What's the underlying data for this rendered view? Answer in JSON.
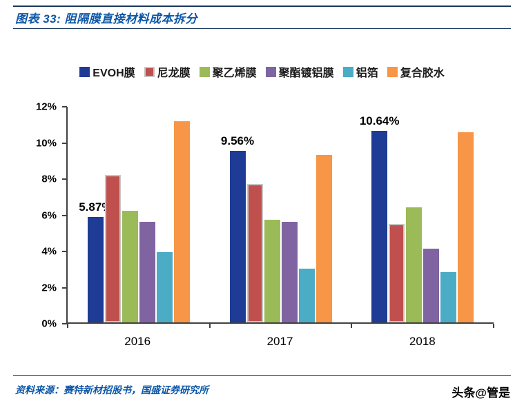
{
  "header": {
    "title": "图表 33: 阻隔膜直接材料成本拆分"
  },
  "chart_data": {
    "type": "bar",
    "title": "阻隔膜直接材料成本拆分",
    "categories": [
      "2016",
      "2017",
      "2018"
    ],
    "series": [
      {
        "name": "EVOH膜",
        "color": "#1E3C95",
        "values": [
          5.87,
          9.56,
          10.64
        ]
      },
      {
        "name": "尼龙膜",
        "color": "#C0504D",
        "border": "#C6C6C6",
        "values": [
          8.2,
          7.7,
          5.5
        ]
      },
      {
        "name": "聚乙烯膜",
        "color": "#9BBB59",
        "values": [
          6.2,
          5.7,
          6.4
        ]
      },
      {
        "name": "聚酯镀铝膜",
        "color": "#8064A2",
        "values": [
          5.6,
          5.6,
          4.1
        ]
      },
      {
        "name": "铝箔",
        "color": "#4BACC6",
        "values": [
          3.9,
          3.0,
          2.8
        ]
      },
      {
        "name": "复合胶水",
        "color": "#F79646",
        "values": [
          11.2,
          9.3,
          10.6
        ]
      }
    ],
    "data_labels": [
      {
        "series": "EVOH膜",
        "category": "2016",
        "text": "5.87%"
      },
      {
        "series": "EVOH膜",
        "category": "2017",
        "text": "9.56%"
      },
      {
        "series": "EVOH膜",
        "category": "2018",
        "text": "10.64%"
      }
    ],
    "y_axis": {
      "min": 0,
      "max": 12,
      "step": 2,
      "tick_labels": [
        "0%",
        "2%",
        "4%",
        "6%",
        "8%",
        "10%",
        "12%"
      ]
    },
    "grid": false,
    "legend_position": "top"
  },
  "footer": {
    "source": "资料来源：赛特新材招股书，国盛证券研究所",
    "watermark": "头条@管是"
  },
  "colors": {
    "title_blue": "#0C57A8",
    "rule_navy": "#17365D",
    "axis_gray": "#404040"
  }
}
